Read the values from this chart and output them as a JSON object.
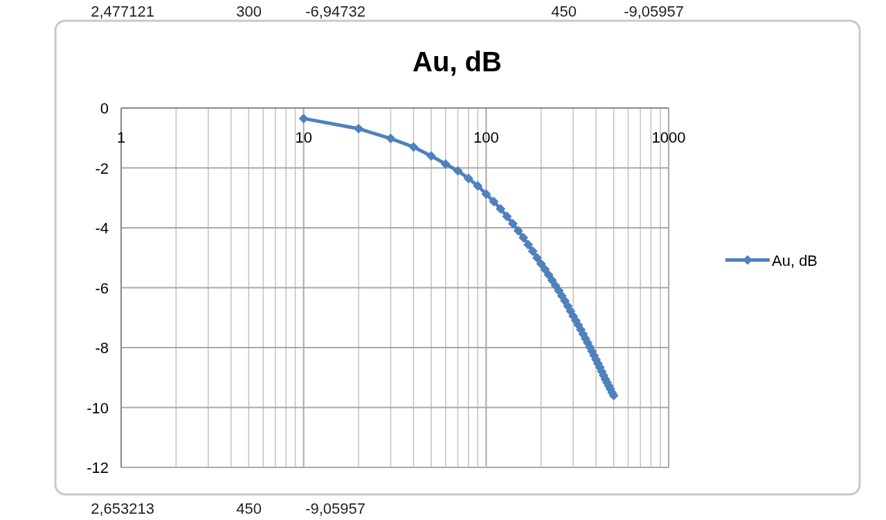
{
  "chart_data": {
    "type": "line",
    "title": "Au, dB",
    "log": "x",
    "grid": true,
    "legend": "right",
    "marker": "diamond",
    "line_style": "solid",
    "xlim": [
      1,
      1000
    ],
    "xticks": [
      1,
      10,
      100,
      1000
    ],
    "ylim": [
      -12,
      0
    ],
    "yticks": [
      0,
      -2,
      -4,
      -6,
      -8,
      -10,
      -12
    ],
    "annotations": [
      "2,477121",
      "300",
      "-6,94732",
      "450",
      "-9,05957",
      "2,653213",
      "450",
      "-9,05957"
    ],
    "x": [
      10,
      20,
      30,
      40,
      50,
      60,
      70,
      80,
      90,
      100,
      110,
      120,
      130,
      140,
      150,
      160,
      170,
      180,
      190,
      200,
      210,
      220,
      230,
      240,
      250,
      260,
      270,
      280,
      290,
      300,
      310,
      320,
      330,
      340,
      350,
      360,
      370,
      380,
      390,
      400,
      410,
      420,
      430,
      440,
      450,
      460,
      470,
      480,
      490,
      500
    ],
    "series": [
      {
        "name": "Au, dB",
        "color": "#4f81bd",
        "values": [
          -0.35,
          -0.69,
          -1.02,
          -1.3,
          -1.6,
          -1.87,
          -2.1,
          -2.35,
          -2.6,
          -2.87,
          -3.12,
          -3.37,
          -3.62,
          -3.86,
          -4.1,
          -4.33,
          -4.56,
          -4.78,
          -5.0,
          -5.2,
          -5.39,
          -5.57,
          -5.75,
          -5.93,
          -6.1,
          -6.27,
          -6.44,
          -6.61,
          -6.78,
          -6.95,
          -7.1,
          -7.25,
          -7.4,
          -7.55,
          -7.7,
          -7.84,
          -7.98,
          -8.12,
          -8.26,
          -8.4,
          -8.53,
          -8.66,
          -8.8,
          -8.93,
          -9.06,
          -9.17,
          -9.28,
          -9.39,
          -9.5,
          -9.6
        ]
      }
    ]
  }
}
